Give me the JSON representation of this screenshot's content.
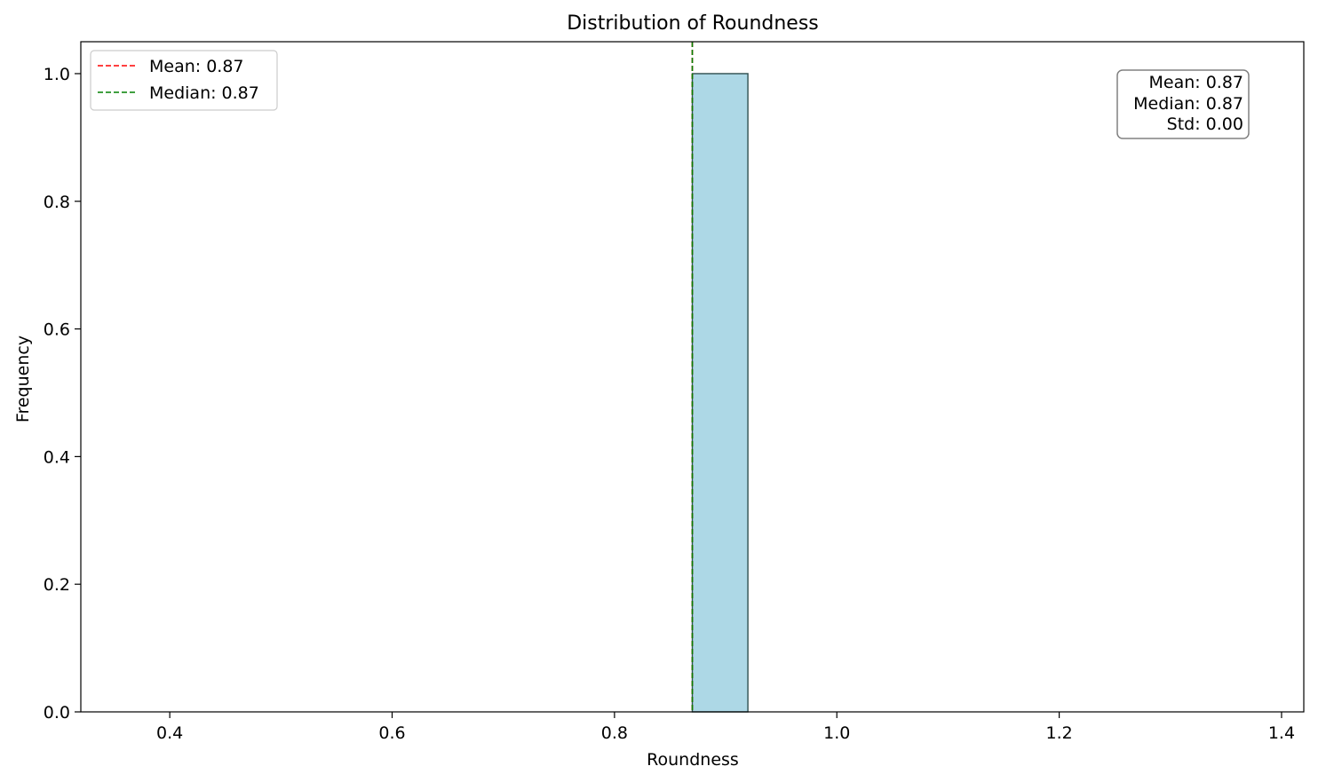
{
  "chart_data": {
    "type": "bar",
    "title": "Distribution of Roundness",
    "xlabel": "Roundness",
    "ylabel": "Frequency",
    "xlim": [
      0.32,
      1.42
    ],
    "ylim": [
      0.0,
      1.05
    ],
    "xticks": [
      0.4,
      0.6,
      0.8,
      1.0,
      1.2,
      1.4
    ],
    "xtick_labels": [
      "0.4",
      "0.6",
      "0.8",
      "1.0",
      "1.2",
      "1.4"
    ],
    "yticks": [
      0.0,
      0.2,
      0.4,
      0.6,
      0.8,
      1.0
    ],
    "ytick_labels": [
      "0.0",
      "0.2",
      "0.4",
      "0.6",
      "0.8",
      "1.0"
    ],
    "grid": false,
    "bins": [
      {
        "x0": 0.87,
        "x1": 0.92,
        "count": 1
      }
    ],
    "mean_line": {
      "x": 0.87,
      "label": "Mean: 0.87",
      "color": "#ff0000"
    },
    "median_line": {
      "x": 0.87,
      "label": "Median: 0.87",
      "color": "#008000"
    },
    "legend": {
      "placement": "top-left",
      "entries": [
        {
          "label": "Mean: 0.87",
          "color": "#ff0000",
          "style": "dashed"
        },
        {
          "label": "Median: 0.87",
          "color": "#008000",
          "style": "dashed"
        }
      ]
    },
    "stats_box": {
      "placement": "top-right",
      "lines": [
        "Mean: 0.87",
        "Median: 0.87",
        "Std: 0.00"
      ]
    },
    "bar_color": "#add8e6",
    "bar_edge_color": "#2f4f4f"
  }
}
